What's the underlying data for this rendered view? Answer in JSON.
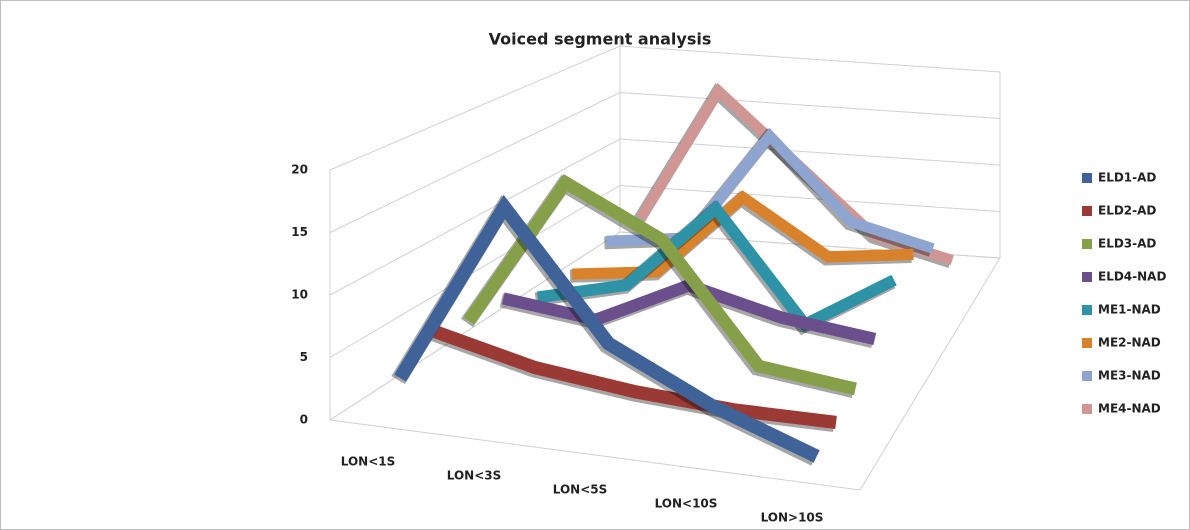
{
  "chart_data": {
    "type": "line3d",
    "title": "Voiced segment analysis",
    "categories": [
      "LON<1S",
      "LON<3S",
      "LON<5S",
      "LON<10S",
      "LON>10S"
    ],
    "ylim": [
      0,
      20
    ],
    "yticks": [
      0,
      5,
      10,
      15,
      20
    ],
    "grid": true,
    "legend": "right",
    "series": [
      {
        "name": "ELD1-AD",
        "color": "#3f6398",
        "values": [
          3,
          18,
          8,
          4,
          1
        ]
      },
      {
        "name": "ELD2-AD",
        "color": "#9b3a35",
        "values": [
          5,
          3,
          2,
          1.5,
          1.5
        ]
      },
      {
        "name": "ELD3-AD",
        "color": "#86a04a",
        "values": [
          4,
          17,
          13,
          3,
          2
        ]
      },
      {
        "name": "ELD4-NAD",
        "color": "#6a4f8c",
        "values": [
          4,
          3,
          7,
          5,
          4
        ]
      },
      {
        "name": "ME1-NAD",
        "color": "#2e93a6",
        "values": [
          2,
          4,
          12,
          2,
          7
        ]
      },
      {
        "name": "ME2-NAD",
        "color": "#d9822c",
        "values": [
          2,
          3,
          11,
          6,
          7
        ]
      },
      {
        "name": "ME3-NAD",
        "color": "#8ea5d1",
        "values": [
          3,
          4,
          15,
          7,
          5
        ]
      },
      {
        "name": "ME4-NAD",
        "color": "#d09694",
        "values": [
          3,
          17,
          10,
          3,
          1
        ]
      }
    ]
  }
}
